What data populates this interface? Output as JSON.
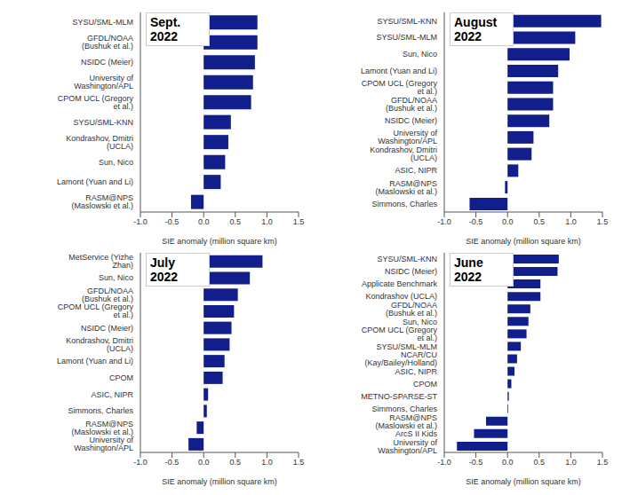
{
  "chart_data": [
    {
      "type": "bar",
      "title": "Sept. 2022",
      "orientation": "horizontal",
      "color": "#111e8c",
      "x_label": "SIE anomaly (million square km)",
      "categories": [
        "SYSU/SML-MLM",
        "GFDL/NOAA (Bushuk et al.)",
        "NSIDC (Meier)",
        "University of Washington/APL",
        "CPOM UCL (Gregory et al.)",
        "SYSU/SML-KNN",
        "Kondrashov, Dmitri (UCLA)",
        "Sun, Nico",
        "Lamont (Yuan and Li)",
        "RASM@NPS (Maslowski et al.)"
      ],
      "values": [
        0.85,
        0.85,
        0.81,
        0.78,
        0.75,
        0.43,
        0.39,
        0.34,
        0.27,
        -0.2
      ],
      "xlim": [
        -1,
        1.5
      ],
      "xticks": [
        {
          "value": -1,
          "label": "-1.0"
        },
        -0.5,
        {
          "value": 0,
          "label": "0.0"
        },
        0.5,
        {
          "value": 1,
          "label": "1.0"
        },
        1.5
      ]
    },
    {
      "type": "bar",
      "title": "August 2022",
      "orientation": "horizontal",
      "color": "#111e8c",
      "x_label": "SIE anomaly (million square km)",
      "categories": [
        "SYSU/SML-KNN",
        "SYSU/SML-MLM",
        "Sun, Nico",
        "Lamont (Yuan and Li)",
        "CPOM UCL (Gregory et al.)",
        "GFDL/NOAA (Bushuk et al.)",
        "NSIDC (Meier)",
        "University of Washington/APL",
        "Kondrashov, Dmitri (UCLA)",
        "ASIC, NIPR",
        "RASM@NPS (Maslowski et al.)",
        "Simmons, Charles"
      ],
      "values": [
        1.48,
        1.07,
        0.98,
        0.8,
        0.72,
        0.72,
        0.66,
        0.41,
        0.38,
        0.17,
        -0.04,
        -0.6
      ],
      "xlim": [
        -1,
        1.5
      ],
      "xticks": [
        {
          "value": -1,
          "label": "-1.0"
        },
        -0.5,
        {
          "value": 0,
          "label": "0.0"
        },
        0.5,
        {
          "value": 1,
          "label": "1.0"
        },
        1.5
      ]
    },
    {
      "type": "bar",
      "title": "July 2022",
      "orientation": "horizontal",
      "color": "#111e8c",
      "x_label": "SIE anomaly (million square km)",
      "categories": [
        "MetService (Yizhe Zhan)",
        "Sun, Nico",
        "GFDL/NOAA (Bushuk et al.)",
        "CPOM UCL (Gregory et al.)",
        "NSIDC (Meier)",
        "Kondrashov, Dmitri (UCLA)",
        "Lamont (Yuan and Li)",
        "CPOM",
        "ASIC, NIPR",
        "Simmons, Charles",
        "RASM@NPS (Maslowski et al.)",
        "University of Washington/APL"
      ],
      "values": [
        0.93,
        0.73,
        0.54,
        0.48,
        0.44,
        0.41,
        0.33,
        0.3,
        0.07,
        0.05,
        -0.11,
        -0.24
      ],
      "xlim": [
        -1,
        1.5
      ],
      "xticks": [
        {
          "value": -1,
          "label": "-1.0"
        },
        -0.5,
        {
          "value": 0,
          "label": "0.0"
        },
        0.5,
        {
          "value": 1,
          "label": "1.0"
        },
        1.5
      ]
    },
    {
      "type": "bar",
      "title": "June 2022",
      "orientation": "horizontal",
      "color": "#111e8c",
      "x_label": "SIE anomaly (million square km)",
      "categories": [
        "SYSU/SML-KNN",
        "NSIDC (Meier)",
        "Applicate Benchmark",
        "Kondrashov (UCLA)",
        "GFDL/NOAA (Bushuk et al.)",
        "Sun, Nico",
        "CPOM UCL (Gregory et al.)",
        "SYSU/SML-MLM",
        "NCAR/CU (Kay/Bailey/Holland)",
        "ASIC, NIPR",
        "CPOM",
        "METNO-SPARSE-ST",
        "Simmons, Charles",
        "RASM@NPS (Maslowski et al.)",
        "ArcS II Kids",
        "University of Washington/APL"
      ],
      "values": [
        0.81,
        0.79,
        0.52,
        0.52,
        0.36,
        0.33,
        0.3,
        0.21,
        0.15,
        0.11,
        0.06,
        0.02,
        0.01,
        -0.34,
        -0.53,
        -0.8
      ],
      "xlim": [
        -1,
        1.5
      ],
      "xticks": [
        {
          "value": -1,
          "label": "-1.0"
        },
        -0.5,
        {
          "value": 0,
          "label": "0.0"
        },
        0.5,
        {
          "value": 1,
          "label": "1.0"
        },
        1.5
      ]
    }
  ]
}
